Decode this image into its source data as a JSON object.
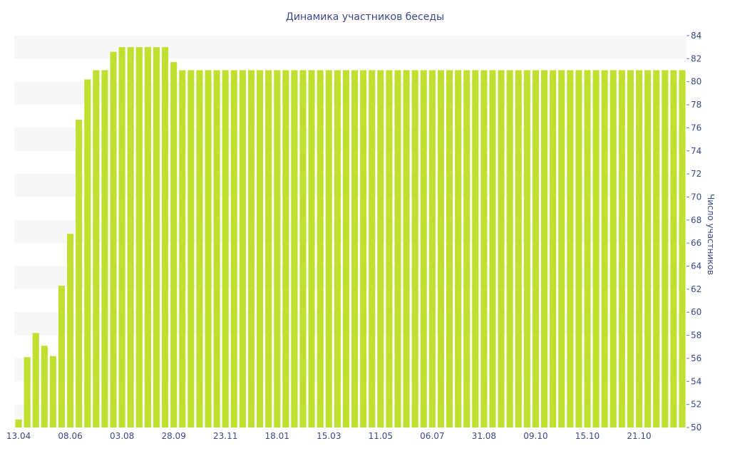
{
  "chart_data": {
    "type": "bar",
    "title": "Динамика участников беседы",
    "ylabel": "Число участников",
    "xlabel": "",
    "ylim": [
      50,
      84
    ],
    "y_ticks": [
      50,
      52,
      54,
      56,
      58,
      60,
      62,
      64,
      66,
      68,
      70,
      72,
      74,
      76,
      78,
      80,
      82,
      84
    ],
    "y_axis_position": "right",
    "x_tick_labels": [
      {
        "index": 0,
        "label": "13.04"
      },
      {
        "index": 6,
        "label": "08.06"
      },
      {
        "index": 12,
        "label": "03.08"
      },
      {
        "index": 18,
        "label": "28.09"
      },
      {
        "index": 24,
        "label": "23.11"
      },
      {
        "index": 30,
        "label": "18.01"
      },
      {
        "index": 36,
        "label": "15.03"
      },
      {
        "index": 42,
        "label": "11.05"
      },
      {
        "index": 48,
        "label": "06.07"
      },
      {
        "index": 54,
        "label": "31.08"
      },
      {
        "index": 60,
        "label": "09.10"
      },
      {
        "index": 66,
        "label": "15.10"
      },
      {
        "index": 72,
        "label": "21.10"
      }
    ],
    "values": [
      50.7,
      56.1,
      58.2,
      57.1,
      56.2,
      62.3,
      66.8,
      76.7,
      80.2,
      81,
      81,
      82.6,
      83,
      83,
      83,
      83,
      83,
      83,
      81.7,
      81,
      81,
      81,
      81,
      81,
      81,
      81,
      81,
      81,
      81,
      81,
      81,
      81,
      81,
      81,
      81,
      81,
      81,
      81,
      81,
      81,
      81,
      81,
      81,
      81,
      81,
      81,
      81,
      81,
      81,
      81,
      81,
      81,
      81,
      81,
      81,
      81,
      81,
      81,
      81,
      81,
      81,
      81,
      81,
      81,
      81,
      81,
      81,
      81,
      81,
      81,
      81,
      81,
      81,
      81,
      81,
      81,
      81,
      81
    ],
    "colors": {
      "bar": "#c0e030",
      "text": "#3b4a8c",
      "band": "#f7f7f7"
    },
    "grid": "alternating-bands",
    "legend": "none"
  }
}
